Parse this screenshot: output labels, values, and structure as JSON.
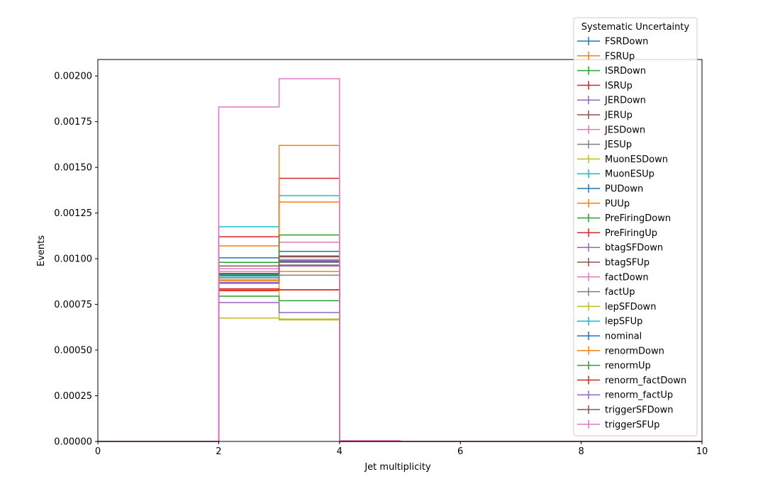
{
  "chart_data": {
    "type": "line",
    "drawstyle": "steps-post",
    "title": "",
    "xlabel": "Jet multiplicity",
    "ylabel": "Events",
    "xlim": [
      0,
      10
    ],
    "ylim": [
      0,
      0.00209
    ],
    "x_ticks": [
      0,
      2,
      4,
      6,
      8,
      10
    ],
    "x_tick_labels": [
      "0",
      "2",
      "4",
      "6",
      "8",
      "10"
    ],
    "y_ticks": [
      0,
      0.00025,
      0.0005,
      0.00075,
      0.001,
      0.00125,
      0.0015,
      0.00175,
      0.002
    ],
    "y_tick_labels": [
      "0.00000",
      "0.00025",
      "0.00050",
      "0.00075",
      "0.00100",
      "0.00125",
      "0.00150",
      "0.00175",
      "0.00200"
    ],
    "grid": false,
    "legend": {
      "title": "Systematic Uncertainty",
      "placement": "upper-right-outside"
    },
    "bin_edges": [
      0,
      1,
      2,
      3,
      4,
      5,
      6,
      7,
      8,
      9,
      10
    ],
    "series": [
      {
        "name": "FSRDown",
        "color": "#1f77b4",
        "values": [
          0,
          0,
          0.00087,
          0.000995,
          0,
          0,
          0,
          0,
          0,
          0
        ]
      },
      {
        "name": "FSRUp",
        "color": "#ff7f0e",
        "values": [
          0,
          0,
          0.00083,
          0.00093,
          0,
          0,
          0,
          0,
          0,
          0
        ]
      },
      {
        "name": "ISRDown",
        "color": "#2ca02c",
        "values": [
          0,
          0,
          0.000915,
          0.00099,
          0,
          0,
          0,
          0,
          0,
          0
        ]
      },
      {
        "name": "ISRUp",
        "color": "#d62728",
        "values": [
          0,
          0,
          0.000825,
          0.00083,
          0,
          0,
          0,
          0,
          0,
          0
        ]
      },
      {
        "name": "JERDown",
        "color": "#9467bd",
        "values": [
          0,
          0,
          0.00087,
          0.00099,
          0,
          0,
          0,
          0,
          0,
          0
        ]
      },
      {
        "name": "JERUp",
        "color": "#8c564b",
        "values": [
          0,
          0,
          0.000905,
          0.001015,
          0,
          0,
          0,
          0,
          0,
          0
        ]
      },
      {
        "name": "JESDown",
        "color": "#e377c2",
        "values": [
          0,
          0,
          0.000945,
          0.00109,
          0,
          0,
          0,
          0,
          0,
          0
        ]
      },
      {
        "name": "JESUp",
        "color": "#7f7f7f",
        "values": [
          0,
          0,
          0.000895,
          0.00091,
          0,
          0,
          0,
          0,
          0,
          0
        ]
      },
      {
        "name": "MuonESDown",
        "color": "#bcbd22",
        "values": [
          0,
          0,
          0.000885,
          0.00067,
          0,
          0,
          0,
          0,
          0,
          0
        ]
      },
      {
        "name": "MuonESUp",
        "color": "#17becf",
        "values": [
          0,
          0,
          0.001175,
          0.001345,
          0,
          0,
          0,
          0,
          0,
          0
        ]
      },
      {
        "name": "PUDown",
        "color": "#1f77b4",
        "values": [
          0,
          0,
          0.001005,
          0.00104,
          0,
          0,
          0,
          0,
          0,
          0
        ]
      },
      {
        "name": "PUUp",
        "color": "#ff7f0e",
        "values": [
          0,
          0,
          0.00107,
          0.00131,
          0,
          0,
          0,
          0,
          0,
          0
        ]
      },
      {
        "name": "PreFiringDown",
        "color": "#2ca02c",
        "values": [
          0,
          0,
          0.000795,
          0.00077,
          0,
          0,
          0,
          0,
          0,
          0
        ]
      },
      {
        "name": "PreFiringUp",
        "color": "#d62728",
        "values": [
          0,
          0,
          0.00112,
          0.00144,
          0,
          0,
          0,
          0,
          0,
          0
        ]
      },
      {
        "name": "btagSFDown",
        "color": "#9467bd",
        "values": [
          0,
          0,
          0.00076,
          0.000705,
          0,
          0,
          0,
          0,
          0,
          0
        ]
      },
      {
        "name": "btagSFUp",
        "color": "#8c564b",
        "values": [
          0,
          0,
          0.00096,
          0.000965,
          0,
          0,
          0,
          0,
          0,
          0
        ]
      },
      {
        "name": "factDown",
        "color": "#e377c2",
        "values": [
          0,
          0,
          0.00093,
          0.000995,
          0,
          0,
          0,
          0,
          0,
          0
        ]
      },
      {
        "name": "factUp",
        "color": "#7f7f7f",
        "values": [
          0,
          0,
          0.000895,
          0.00098,
          0,
          0,
          0,
          0,
          0,
          0
        ]
      },
      {
        "name": "lepSFDown",
        "color": "#bcbd22",
        "values": [
          0,
          0,
          0.000675,
          0.000665,
          0,
          0,
          0,
          0,
          0,
          0
        ]
      },
      {
        "name": "lepSFUp",
        "color": "#17becf",
        "values": [
          0,
          0,
          0.000905,
          0.000985,
          0,
          0,
          0,
          0,
          0,
          0
        ]
      },
      {
        "name": "nominal",
        "color": "#1f77b4",
        "values": [
          0,
          0,
          0.00091,
          0.000985,
          0,
          0,
          0,
          0,
          0,
          0
        ]
      },
      {
        "name": "renormDown",
        "color": "#ff7f0e",
        "values": [
          0,
          0,
          0.00088,
          0.00162,
          0,
          0,
          0,
          0,
          0,
          0
        ]
      },
      {
        "name": "renormUp",
        "color": "#2ca02c",
        "values": [
          0,
          0,
          0.00098,
          0.00113,
          0,
          0,
          0,
          0,
          0,
          0
        ]
      },
      {
        "name": "renorm_factDown",
        "color": "#d62728",
        "values": [
          0,
          0,
          0.000835,
          0.00083,
          0,
          0,
          0,
          0,
          0,
          0
        ]
      },
      {
        "name": "renorm_factUp",
        "color": "#9467bd",
        "values": [
          0,
          0,
          0.000865,
          0.00096,
          0,
          0,
          0,
          0,
          0,
          0
        ]
      },
      {
        "name": "triggerSFDown",
        "color": "#8c564b",
        "values": [
          0,
          0,
          0.00092,
          0.00101,
          0,
          0,
          0,
          0,
          0,
          0
        ]
      },
      {
        "name": "triggerSFUp",
        "color": "#e377c2",
        "values": [
          0,
          0,
          0.00183,
          0.001985,
          5e-06,
          0,
          0,
          0,
          0,
          0
        ]
      }
    ]
  }
}
